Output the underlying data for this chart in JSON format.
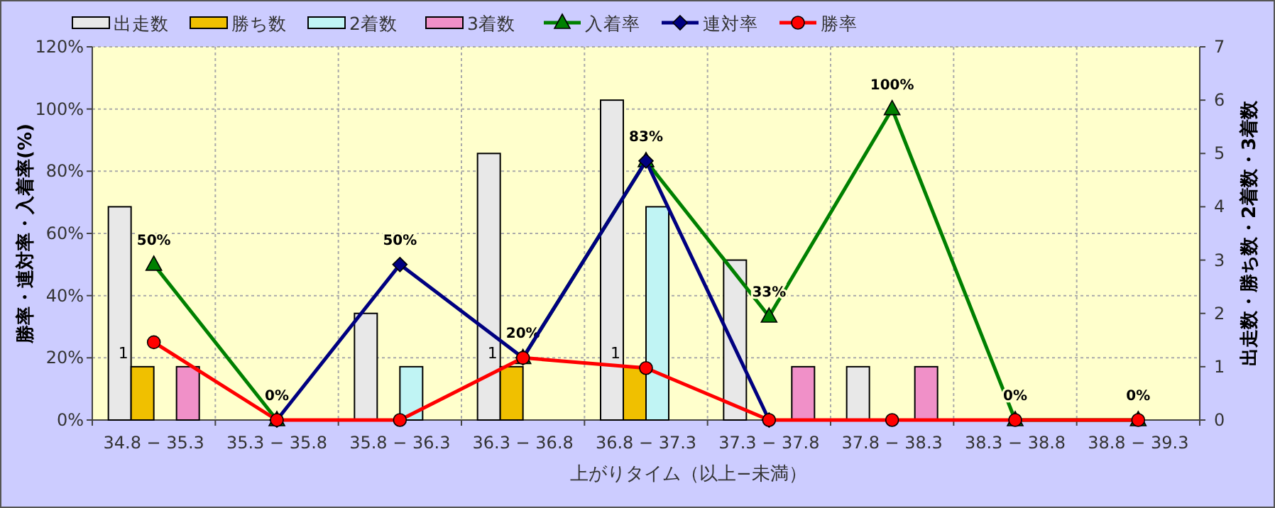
{
  "chart_data": {
    "type": "bar",
    "xlabel": "上がりタイム（以上−未満）",
    "ylabel": "勝率・連対率・入着率(%)",
    "y2label": "出走数・勝ち数・2着数・3着数",
    "categories": [
      "34.8 − 35.3",
      "35.3 − 35.8",
      "35.8 − 36.3",
      "36.3 − 36.8",
      "36.8 − 37.3",
      "37.3 − 37.8",
      "37.8 − 38.3",
      "38.3 − 38.8",
      "38.8 − 39.3"
    ],
    "series": [
      {
        "name": "出走数",
        "axis": "y2",
        "color": "#e8e8e8",
        "values": [
          4,
          0,
          2,
          5,
          6,
          3,
          1,
          0,
          0
        ]
      },
      {
        "name": "勝ち数",
        "axis": "y2",
        "color": "#f0c000",
        "values": [
          1,
          0,
          0,
          1,
          1,
          0,
          0,
          0,
          0
        ],
        "value_labels": [
          "1",
          null,
          null,
          "1",
          "1",
          null,
          null,
          null,
          null
        ]
      },
      {
        "name": "2着数",
        "axis": "y2",
        "color": "#c0f4f4",
        "values": [
          0,
          0,
          1,
          0,
          4,
          0,
          0,
          0,
          0
        ]
      },
      {
        "name": "3着数",
        "axis": "y2",
        "color": "#f090c8",
        "values": [
          1,
          0,
          0,
          0,
          0,
          1,
          1,
          0,
          0
        ]
      },
      {
        "name": "入着率",
        "type": "line",
        "color": "#008000",
        "marker": "triangle",
        "values": [
          50,
          0,
          null,
          20,
          83.3,
          33.3,
          100,
          0,
          0
        ],
        "value_labels": [
          "50%",
          "0%",
          null,
          "20%",
          "83%",
          "33%",
          "100%",
          "0%",
          "0%"
        ]
      },
      {
        "name": "連対率",
        "type": "line",
        "color": "#000080",
        "marker": "diamond",
        "values": [
          null,
          0,
          50,
          20,
          83.3,
          0,
          null,
          null,
          null
        ],
        "value_labels": [
          null,
          null,
          "50%",
          null,
          null,
          null,
          null,
          null,
          null
        ]
      },
      {
        "name": "勝率",
        "type": "line",
        "color": "#ff0000",
        "marker": "circle",
        "values": [
          25,
          0,
          0,
          20,
          16.7,
          0,
          0,
          0,
          0
        ]
      }
    ],
    "ylim": [
      0,
      120
    ],
    "yticks": [
      {
        "value": 0,
        "label": "0%"
      },
      {
        "value": 20,
        "label": "20%"
      },
      {
        "value": 40,
        "label": "40%"
      },
      {
        "value": 60,
        "label": "60%"
      },
      {
        "value": 80,
        "label": "80%"
      },
      {
        "value": 100,
        "label": "100%"
      },
      {
        "value": 120,
        "label": "120%"
      }
    ],
    "y2lim": [
      0,
      7
    ],
    "y2ticks": [
      0,
      1,
      2,
      3,
      4,
      5,
      6,
      7
    ],
    "grid": true,
    "legend": "top"
  }
}
